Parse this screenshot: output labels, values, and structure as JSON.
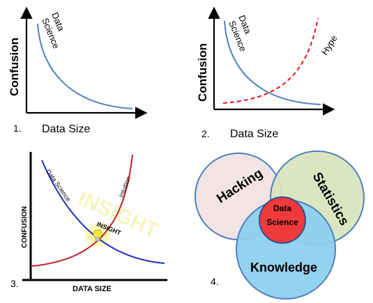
{
  "panels": [
    {
      "number": "1.",
      "xlabel": "Data Size",
      "ylabel": "Confusion",
      "curve_label_line1": "Data",
      "curve_label_line2": "Science"
    },
    {
      "number": "2.",
      "xlabel": "Data Size",
      "ylabel": "Confusion",
      "curve_label_line1": "Data",
      "curve_label_line2": "Science",
      "hype_label": "Hype"
    },
    {
      "number": "3.",
      "xlabel": "DATA SIZE",
      "ylabel": "CONFUSION",
      "data_science_label": "Data Science",
      "intuition_label": "Intuition",
      "insight_label": "INSIGHT",
      "insight_watermark": "INSIGHT"
    },
    {
      "number": "4.",
      "hacking": "Hacking",
      "statistics": "Statistics",
      "knowledge": "Knowledge",
      "center_line1": "Data",
      "center_line2": "Science"
    }
  ],
  "colors": {
    "blue_curve": "#4f81bd",
    "red_dashed": "#e0161d",
    "blue_line": "#1f2fc0",
    "red_line": "#c0202a",
    "hacking_fill": "#f2e4e4",
    "statistics_fill": "#d8e4bc",
    "knowledge_fill": "#8ed0ee",
    "center_fill": "#ee3a3a",
    "circle_stroke": "#4f7fbd",
    "bulb": "#f3ec3c"
  }
}
